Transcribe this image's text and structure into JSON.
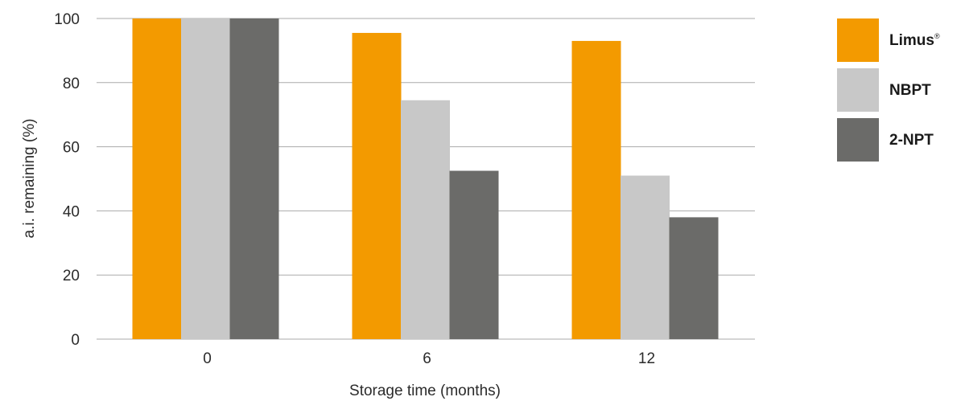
{
  "chart_data": {
    "type": "bar",
    "categories": [
      "0",
      "6",
      "12"
    ],
    "series": [
      {
        "name": "Limus",
        "name_sup": "®",
        "color": "#f39a00",
        "values": [
          100,
          95.5,
          93
        ]
      },
      {
        "name": "NBPT",
        "color": "#c8c8c8",
        "values": [
          100,
          74.5,
          51
        ]
      },
      {
        "name": "2-NPT",
        "color": "#6b6b69",
        "values": [
          100,
          52.5,
          38
        ]
      }
    ],
    "xlabel": "Storage time (months)",
    "ylabel": "a.i. remaining (%)",
    "ylim": [
      0,
      100
    ],
    "yticks": [
      0,
      20,
      40,
      60,
      80,
      100
    ],
    "grid": true,
    "legend_position": "right",
    "gridline_color": "#aaaaaa"
  }
}
